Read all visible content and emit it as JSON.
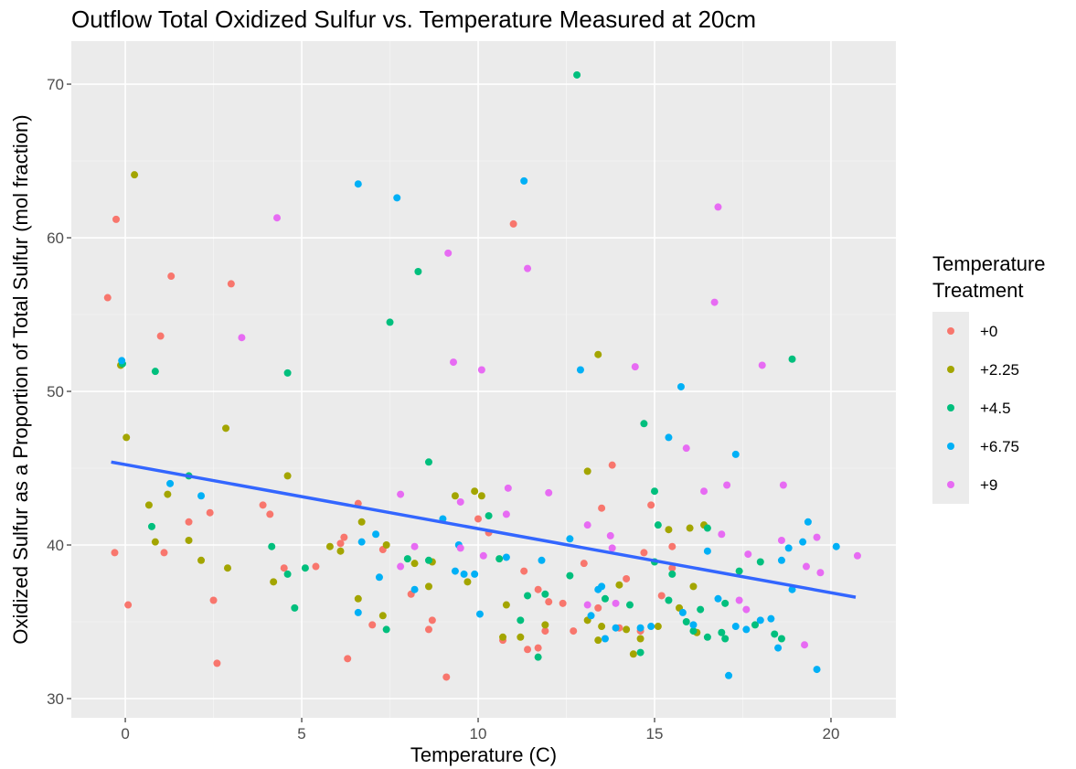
{
  "chart_data": {
    "type": "scatter",
    "title": "Outflow Total Oxidized Sulfur vs. Temperature Measured at 20cm",
    "x_label": "Temperature (C)",
    "y_label": "Oxidized Sulfur as a Proportion of Total Sulfur (mol fraction)",
    "legend_title": "Temperature Treatment",
    "legend_position": "right",
    "grid": true,
    "xlim": [
      -1.53,
      21.84
    ],
    "ylim": [
      28.75,
      72.8
    ],
    "xticks": [
      0,
      5,
      10,
      15,
      20
    ],
    "yticks": [
      30,
      40,
      50,
      60,
      70
    ],
    "trend_line": {
      "color": "#3366FF",
      "x": [
        -0.4,
        20.7
      ],
      "y": [
        45.4,
        36.6
      ]
    },
    "series": [
      {
        "name": "+0",
        "color": "#F8766D",
        "x": [
          -0.5,
          -0.26,
          -0.3,
          0.08,
          1.0,
          1.3,
          1.1,
          1.8,
          2.4,
          2.5,
          2.6,
          3.0,
          3.9,
          4.1,
          4.5,
          5.4,
          6.1,
          6.2,
          6.3,
          6.6,
          7.0,
          7.3,
          8.1,
          8.6,
          8.7,
          9.1,
          10.0,
          10.3,
          10.7,
          11.0,
          11.3,
          11.4,
          11.7,
          11.7,
          11.9,
          12.0,
          12.4,
          12.7,
          13.0,
          13.4,
          13.5,
          13.8,
          14.0,
          14.2,
          14.6,
          14.7,
          14.9,
          15.2,
          15.5,
          15.5
        ],
        "y": [
          56.1,
          61.2,
          39.5,
          36.1,
          53.6,
          57.5,
          39.5,
          41.5,
          42.1,
          36.4,
          32.3,
          57.0,
          42.6,
          42.0,
          38.5,
          38.6,
          40.1,
          40.5,
          32.6,
          42.7,
          34.8,
          39.7,
          36.8,
          34.5,
          35.1,
          31.4,
          41.7,
          40.8,
          33.8,
          60.9,
          38.3,
          33.2,
          37.1,
          33.3,
          34.4,
          36.3,
          36.2,
          34.4,
          38.8,
          35.9,
          42.4,
          45.2,
          34.6,
          37.8,
          34.4,
          39.5,
          42.6,
          36.7,
          39.9,
          38.5
        ]
      },
      {
        "name": "+2.25",
        "color": "#A3A500",
        "x": [
          0.26,
          -0.13,
          0.03,
          0.67,
          0.85,
          1.2,
          1.8,
          2.15,
          2.85,
          2.9,
          4.2,
          4.6,
          5.8,
          6.1,
          6.6,
          6.7,
          7.3,
          7.4,
          8.2,
          8.6,
          8.7,
          9.35,
          9.7,
          9.9,
          10.1,
          10.8,
          10.7,
          11.2,
          11.9,
          13.1,
          13.4,
          13.1,
          13.4,
          13.5,
          14.0,
          14.2,
          14.4,
          14.6,
          15.1,
          15.4,
          15.7,
          16.0,
          16.2,
          16.4,
          16.1
        ],
        "y": [
          64.1,
          51.7,
          47.0,
          42.6,
          40.2,
          43.3,
          40.3,
          39.0,
          47.6,
          38.5,
          37.6,
          44.5,
          39.9,
          39.6,
          36.5,
          41.5,
          35.4,
          40.0,
          38.8,
          37.3,
          38.9,
          43.2,
          37.6,
          43.5,
          43.2,
          36.1,
          34.0,
          34.0,
          34.8,
          44.8,
          52.4,
          35.1,
          33.8,
          34.7,
          37.4,
          34.5,
          32.9,
          33.9,
          34.7,
          41.0,
          35.9,
          41.1,
          34.3,
          41.3,
          37.3
        ]
      },
      {
        "name": "+4.5",
        "color": "#00BF7D",
        "x": [
          -0.08,
          0.75,
          0.85,
          1.8,
          4.15,
          4.6,
          4.6,
          4.8,
          5.1,
          7.4,
          7.5,
          8.0,
          8.3,
          8.6,
          8.6,
          10.3,
          10.6,
          11.2,
          11.4,
          11.7,
          11.9,
          12.6,
          12.8,
          13.6,
          14.3,
          14.6,
          14.7,
          15.0,
          15.0,
          15.1,
          15.5,
          15.4,
          15.9,
          16.1,
          16.3,
          16.5,
          16.5,
          16.9,
          17.0,
          17.0,
          17.4,
          17.85,
          18.0,
          18.4,
          18.9,
          18.6
        ],
        "y": [
          51.8,
          41.2,
          51.3,
          44.5,
          39.9,
          51.2,
          38.1,
          35.9,
          38.5,
          34.5,
          54.5,
          39.1,
          57.8,
          45.4,
          39.0,
          41.9,
          39.1,
          35.1,
          36.7,
          32.7,
          36.8,
          38.0,
          70.6,
          36.5,
          36.1,
          33.0,
          47.9,
          43.5,
          38.9,
          41.3,
          38.1,
          36.4,
          35.0,
          34.4,
          35.8,
          41.1,
          34.0,
          34.3,
          33.9,
          36.2,
          38.3,
          34.8,
          38.9,
          34.2,
          52.1,
          33.9
        ]
      },
      {
        "name": "+6.75",
        "color": "#00B0F6",
        "x": [
          -0.1,
          1.27,
          2.15,
          6.6,
          6.6,
          6.7,
          7.1,
          7.2,
          7.7,
          8.2,
          9.0,
          9.35,
          9.45,
          9.6,
          9.9,
          10.05,
          10.8,
          11.3,
          11.8,
          12.6,
          12.9,
          13.2,
          13.4,
          13.5,
          13.6,
          13.9,
          14.6,
          14.9,
          15.4,
          15.75,
          15.8,
          16.1,
          16.5,
          16.8,
          17.1,
          17.3,
          17.3,
          17.6,
          18.0,
          18.3,
          18.5,
          18.6,
          18.8,
          18.9,
          19.2,
          19.35,
          19.6,
          20.15
        ],
        "y": [
          52.0,
          44.0,
          43.2,
          63.5,
          35.6,
          40.2,
          40.7,
          37.9,
          62.6,
          37.1,
          41.7,
          38.3,
          40.0,
          38.1,
          38.1,
          35.5,
          39.2,
          63.7,
          39.0,
          40.4,
          51.4,
          35.4,
          37.1,
          37.3,
          33.9,
          34.6,
          34.6,
          34.7,
          47.0,
          50.3,
          35.6,
          34.8,
          39.6,
          36.5,
          31.5,
          34.7,
          45.9,
          34.5,
          35.1,
          35.2,
          33.3,
          39.0,
          39.8,
          37.1,
          40.2,
          41.5,
          31.9,
          39.9
        ]
      },
      {
        "name": "+9",
        "color": "#E76BF3",
        "x": [
          3.3,
          4.3,
          7.8,
          7.8,
          8.2,
          9.15,
          9.3,
          9.5,
          9.5,
          10.1,
          10.15,
          10.85,
          10.8,
          11.4,
          12.0,
          13.1,
          13.1,
          13.75,
          13.9,
          14.45,
          13.8,
          15.9,
          16.4,
          16.8,
          16.7,
          16.9,
          17.05,
          17.4,
          17.6,
          17.65,
          18.05,
          18.65,
          18.6,
          19.25,
          19.3,
          19.6,
          19.7,
          20.75
        ],
        "y": [
          53.5,
          61.3,
          38.6,
          43.3,
          39.9,
          59.0,
          51.9,
          42.8,
          39.8,
          51.4,
          39.3,
          43.7,
          42.0,
          58.0,
          43.4,
          36.1,
          41.3,
          40.6,
          36.2,
          51.6,
          39.8,
          46.3,
          43.5,
          62.0,
          55.8,
          40.7,
          43.9,
          36.4,
          35.8,
          39.4,
          51.7,
          43.9,
          40.3,
          33.5,
          38.6,
          40.5,
          38.2,
          39.3
        ]
      }
    ]
  }
}
